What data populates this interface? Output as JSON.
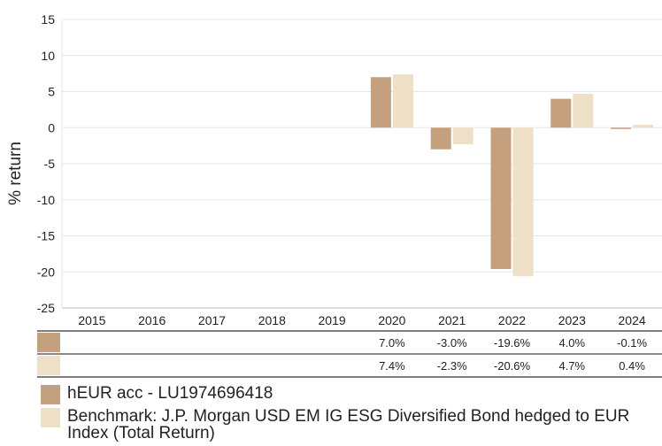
{
  "chart_data": {
    "type": "bar",
    "categories": [
      "2015",
      "2016",
      "2017",
      "2018",
      "2019",
      "2020",
      "2021",
      "2022",
      "2023",
      "2024"
    ],
    "ylabel": "% return",
    "ylim": [
      -25,
      15
    ],
    "yticks": [
      15,
      10,
      5,
      0,
      -5,
      -10,
      -15,
      -20,
      -25
    ],
    "grid": true,
    "series": [
      {
        "name": "hEUR acc - LU1974696418",
        "color": "#c4a07f",
        "values": [
          null,
          null,
          null,
          null,
          null,
          7.0,
          -3.0,
          -19.6,
          4.0,
          -0.1
        ],
        "labels": [
          "",
          "",
          "",
          "",
          "",
          "7.0%",
          "-3.0%",
          "-19.6%",
          "4.0%",
          "-0.1%"
        ]
      },
      {
        "name": "Benchmark: J.P. Morgan USD EM IG ESG Diversified Bond hedged to EUR Index (Total Return)",
        "color": "#ede0c7",
        "values": [
          null,
          null,
          null,
          null,
          null,
          7.4,
          -2.3,
          -20.6,
          4.7,
          0.4
        ],
        "labels": [
          "",
          "",
          "",
          "",
          "",
          "7.4%",
          "-2.3%",
          "-20.6%",
          "4.7%",
          "0.4%"
        ]
      }
    ]
  }
}
